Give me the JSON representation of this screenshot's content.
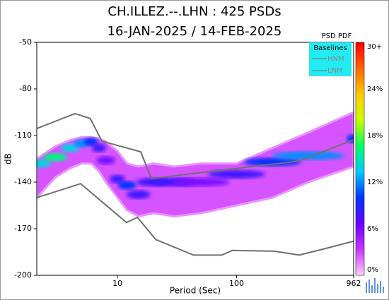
{
  "chart_data": {
    "type": "psd_pdf",
    "title": "CH.ILLEZ.--.LHN : 425 PSDs",
    "subtitle": "16-JAN-2025 / 14-FEB-2025",
    "x_label": "Period (Sec)",
    "y_label": "dB",
    "xlim": [
      2.1,
      962
    ],
    "xticks": [
      10,
      100,
      962
    ],
    "x_log": true,
    "ylim": [
      -200,
      -50
    ],
    "yticks": [
      -50,
      -80,
      -110,
      -140,
      -170,
      -200
    ],
    "colorbar_label": "PSD PDF",
    "clim": [
      0,
      30
    ],
    "cticks": [
      {
        "value": 30,
        "label": "30+"
      },
      {
        "value": 24,
        "label": "24%"
      },
      {
        "value": 18,
        "label": "18%"
      },
      {
        "value": 12,
        "label": "12%"
      },
      {
        "value": 6,
        "label": "6%"
      },
      {
        "value": 0,
        "label": "0%"
      }
    ],
    "colormap": [
      "#ffccff",
      "#cc33ff",
      "#6600ff",
      "#0033ff",
      "#00ccff",
      "#00ff66",
      "#ccff00",
      "#ffcc00",
      "#ff6600",
      "#ff0000"
    ],
    "pdf": {
      "x": [
        2.1,
        3,
        4,
        5,
        6,
        7,
        8,
        10,
        12,
        15,
        20,
        30,
        50,
        100,
        200,
        400,
        962
      ],
      "upper": [
        -125,
        -117,
        -113,
        -111,
        -111,
        -112,
        -114,
        -120,
        -128,
        -130,
        -128,
        -130,
        -128,
        -128,
        -118,
        -108,
        -95
      ],
      "lower": [
        -150,
        -137,
        -131,
        -128,
        -128,
        -133,
        -140,
        -150,
        -158,
        -162,
        -160,
        -162,
        -160,
        -155,
        -150,
        -140,
        -130
      ],
      "mode": [
        -128,
        -124,
        -118,
        -115,
        -114,
        -118,
        -126,
        -138,
        -142,
        -148,
        -140,
        -140,
        -140,
        -135,
        -127,
        -123,
        -112
      ],
      "peak": [
        14,
        16,
        14,
        12,
        10,
        8,
        6,
        8,
        10,
        8,
        8,
        8,
        6,
        8,
        10,
        12,
        10
      ]
    },
    "legend_title": "Baselines",
    "series": [
      {
        "name": "HNM",
        "color": "#707070",
        "x": [
          2.1,
          4.4,
          5.9,
          7.4,
          15.7,
          19.2,
          336,
          962
        ],
        "values": [
          -105.5,
          -95.9,
          -99,
          -113.6,
          -120.5,
          -137.7,
          -126.4,
          -112.7
        ]
      },
      {
        "name": "LNM",
        "color": "#707070",
        "x": [
          2.1,
          4.9,
          11.9,
          14.7,
          21,
          43.5,
          75,
          92,
          209,
          336,
          542,
          962
        ],
        "values": [
          -150,
          -141,
          -166,
          -162.7,
          -177,
          -187,
          -187,
          -184,
          -184.5,
          -187,
          -183,
          -178
        ]
      }
    ]
  }
}
